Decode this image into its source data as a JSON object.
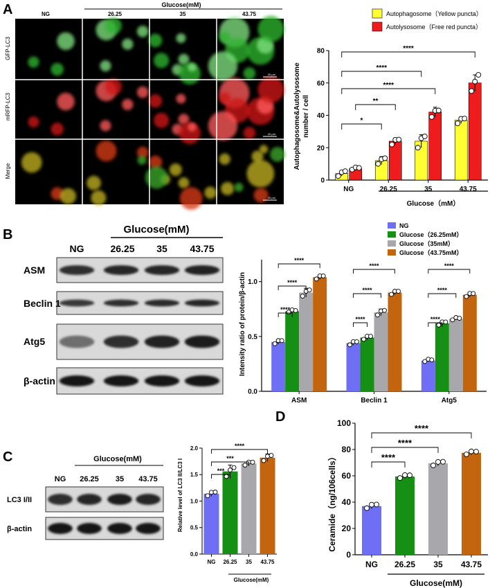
{
  "panel_labels": {
    "a": "A",
    "b": "B",
    "c": "C",
    "d": "D"
  },
  "colors": {
    "yellow": "#ffff33",
    "red": "#ee1c1c",
    "blue": "#6f6ff5",
    "green": "#159015",
    "gray": "#a8a8ac",
    "orange": "#c3640f"
  },
  "microscopy": {
    "col_labels": [
      "NG",
      "26.25",
      "35",
      "43.75"
    ],
    "group_label": "Glucose(mM)",
    "row_labels": [
      "GFP-LC3",
      "mRFP-LC3",
      "Merge"
    ],
    "scale_bar": "20 μm"
  },
  "blot_b": {
    "group_label": "Glucose(mM)",
    "lane_labels": [
      "NG",
      "26.25",
      "35",
      "43.75"
    ],
    "rows": [
      "ASM",
      "Beclin 1",
      "Atg5",
      "β-actin"
    ]
  },
  "blot_c": {
    "group_label": "Glucose(mM)",
    "lane_labels": [
      "NG",
      "26.25",
      "35",
      "43.75"
    ],
    "rows": [
      "LC3 I/II",
      "β-actin"
    ]
  },
  "chart_data": [
    {
      "id": "A",
      "type": "bar",
      "categories": [
        "NG",
        "26.25",
        "35",
        "43.75"
      ],
      "series": [
        {
          "name": "Autophagosome（Yellow puncta）",
          "values": [
            4,
            12,
            24,
            37
          ],
          "err": [
            1.5,
            2.5,
            4,
            2
          ],
          "points": [
            [
              2.5,
              4,
              5.5
            ],
            [
              10,
              12,
              13.5
            ],
            [
              20,
              25,
              27
            ],
            [
              35,
              37,
              38
            ]
          ]
        },
        {
          "name": "Autolysosome（Free red puncta）",
          "values": [
            7,
            24,
            42,
            60
          ],
          "err": [
            1,
            2,
            3,
            5
          ],
          "points": [
            [
              6.5,
              7,
              7.5
            ],
            [
              22,
              24,
              25
            ],
            [
              39,
              42,
              43
            ],
            [
              55,
              60,
              65
            ]
          ]
        }
      ],
      "ylabel_lines": [
        "Autophagosome&Autolysosome",
        "number / cell"
      ],
      "xlabel": "Glucose（mM）",
      "ylim": [
        0,
        80
      ],
      "yticks": [
        "0",
        "20",
        "40",
        "60",
        "80"
      ],
      "sig": [
        "*",
        "**",
        "****",
        "****",
        "****",
        "****"
      ]
    },
    {
      "id": "B",
      "type": "bar",
      "categories": [
        "ASM",
        "Beclin 1",
        "Atg5"
      ],
      "series": [
        {
          "name": "NG",
          "values": [
            0.45,
            0.44,
            0.28
          ],
          "err": [
            0.02,
            0.02,
            0.01
          ]
        },
        {
          "name": "Glucose（26.25mM）",
          "values": [
            0.73,
            0.49,
            0.62
          ],
          "err": [
            0.01,
            0.02,
            0.02
          ]
        },
        {
          "name": "Glucose（35mM）",
          "values": [
            0.9,
            0.72,
            0.66
          ],
          "err": [
            0.04,
            0.03,
            0.01
          ]
        },
        {
          "name": "Glucose（43.75mM）",
          "values": [
            1.04,
            0.9,
            0.88
          ],
          "err": [
            0.02,
            0.02,
            0.02
          ]
        }
      ],
      "ylabel": "Intensity ratio of protein/β-actin",
      "ylim": [
        0,
        1.2
      ],
      "yticks": [
        "0.0",
        "0.5",
        "1.0"
      ],
      "sig": "****"
    },
    {
      "id": "C",
      "type": "bar",
      "categories": [
        "NG",
        "26.25",
        "35",
        "43.75"
      ],
      "values": [
        1.14,
        1.56,
        1.71,
        1.82
      ],
      "err": [
        0.05,
        0.12,
        0.04,
        0.07
      ],
      "ylabel": "Relative level of LC3 II/LC3 I",
      "xlabel": "Glucose(mM)",
      "ylim": [
        0,
        2.0
      ],
      "yticks": [
        "0.0",
        "0.5",
        "1.0",
        "1.5",
        "2.0"
      ],
      "sig": [
        "***",
        "***",
        "****"
      ]
    },
    {
      "id": "D",
      "type": "bar",
      "categories": [
        "NG",
        "26.25",
        "35",
        "43.75"
      ],
      "values": [
        37,
        59.5,
        69.5,
        77.5
      ],
      "err": [
        2,
        1.5,
        2,
        1.5
      ],
      "ylabel": "Ceramide（ng/106cells）",
      "xlabel": "Glucose(mM)",
      "ylim": [
        0,
        100
      ],
      "yticks": [
        "0",
        "20",
        "40",
        "60",
        "80",
        "100"
      ],
      "sig": [
        "****",
        "****",
        "****"
      ]
    }
  ]
}
